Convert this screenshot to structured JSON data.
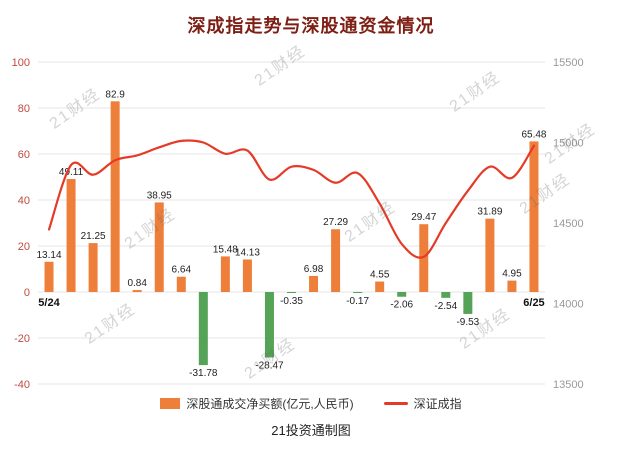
{
  "chart_data": {
    "type": "bar+line",
    "title": "深成指走势与深股通资金情况",
    "caption": "21投资通制图",
    "watermark": "21财经",
    "x_axis": {
      "first_label": "5/24",
      "last_label": "6/25"
    },
    "bar_series": {
      "name": "深股通成交净买额(亿元,人民币)",
      "axis": "left",
      "color_positive": "#ee7f3a",
      "color_negative": "#55a357",
      "values": [
        13.14,
        49.11,
        21.25,
        82.9,
        0.84,
        38.95,
        6.64,
        -31.78,
        15.48,
        14.13,
        -28.47,
        -0.35,
        6.98,
        27.29,
        -0.17,
        4.55,
        -2.06,
        29.47,
        -2.54,
        -9.53,
        31.89,
        4.95,
        65.48
      ]
    },
    "line_series": {
      "name": "深证成指",
      "axis": "right",
      "color": "#e53a28",
      "values": [
        14460,
        14860,
        14800,
        14890,
        14920,
        14970,
        15010,
        15000,
        14930,
        14950,
        14770,
        14850,
        14830,
        14750,
        14810,
        14620,
        14370,
        14290,
        14500,
        14700,
        14850,
        14780,
        14980
      ]
    },
    "left_axis": {
      "ticks": [
        100,
        80,
        60,
        40,
        20,
        0,
        -20,
        -40
      ],
      "max": 100,
      "min": -40
    },
    "right_axis": {
      "ticks": [
        15500,
        15000,
        14500,
        14000,
        13500
      ],
      "max": 15500,
      "min": 13500
    },
    "legend": [
      {
        "label": "深股通成交净买额(亿元,人民币)",
        "type": "bar"
      },
      {
        "label": "深证成指",
        "type": "line"
      }
    ],
    "colors": {
      "left_axis": "#bf4a3f",
      "right_axis": "#999999",
      "grid": "#e4e4e4",
      "bar_label": "#222222",
      "x_label": "#111111",
      "title": "#7e1f15"
    }
  }
}
